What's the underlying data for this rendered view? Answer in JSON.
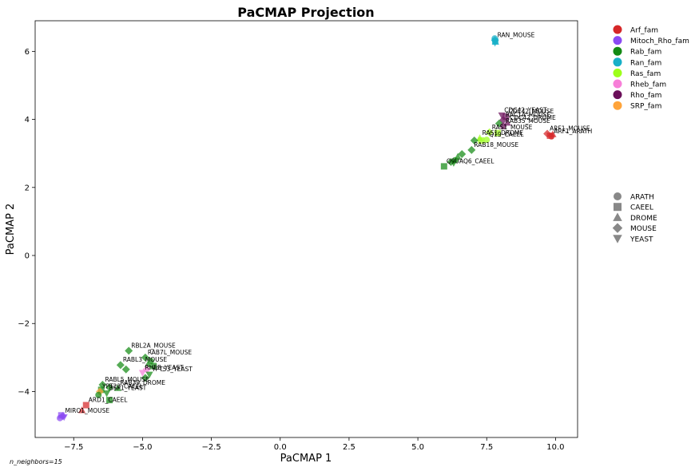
{
  "chart_data": {
    "type": "scatter",
    "title": "PaCMAP Projection",
    "xlabel": "PaCMAP 1",
    "ylabel": "PaCMAP 2",
    "xlim": [
      -8.9,
      10.8
    ],
    "ylim": [
      -5.35,
      6.9
    ],
    "xticks": [
      -7.5,
      -5.0,
      -2.5,
      0.0,
      2.5,
      5.0,
      7.5,
      10.0
    ],
    "xtick_labels": [
      "−7.5",
      "−5.0",
      "−2.5",
      "0.0",
      "2.5",
      "5.0",
      "7.5",
      "10.0"
    ],
    "yticks": [
      -4,
      -2,
      0,
      2,
      4,
      6
    ],
    "ytick_labels": [
      "−4",
      "−2",
      "0",
      "2",
      "4",
      "6"
    ],
    "grid": false,
    "footnote": "n_neighbors=15",
    "family_legend": [
      {
        "name": "Arf_fam",
        "color": "#d62728"
      },
      {
        "name": "Mitoch_Rho_fam",
        "color": "#8a4af3"
      },
      {
        "name": "Rab_fam",
        "color": "#138a13"
      },
      {
        "name": "Ran_fam",
        "color": "#17b0c8"
      },
      {
        "name": "Ras_fam",
        "color": "#9dff1a"
      },
      {
        "name": "Rheb_fam",
        "color": "#f77fd8"
      },
      {
        "name": "Rho_fam",
        "color": "#6b0f5a"
      },
      {
        "name": "SRP_fam",
        "color": "#ffa43a"
      }
    ],
    "species_legend": [
      {
        "name": "ARATH",
        "marker": "circle"
      },
      {
        "name": "CAEEL",
        "marker": "square"
      },
      {
        "name": "DROME",
        "marker": "triangle-up"
      },
      {
        "name": "MOUSE",
        "marker": "diamond"
      },
      {
        "name": "YEAST",
        "marker": "triangle-down"
      }
    ],
    "points": [
      {
        "x": 7.8,
        "y": 6.33,
        "family": "Ran_fam",
        "marker": "diamond",
        "label": "RAN_MOUSE"
      },
      {
        "x": 7.82,
        "y": 6.28,
        "family": "Ran_fam",
        "marker": "triangle-up",
        "label": ""
      },
      {
        "x": 7.79,
        "y": 6.38,
        "family": "Ran_fam",
        "marker": "circle",
        "label": ""
      },
      {
        "x": 7.81,
        "y": 6.3,
        "family": "Ran_fam",
        "marker": "square",
        "label": ""
      },
      {
        "x": 7.8,
        "y": 6.25,
        "family": "Ran_fam",
        "marker": "triangle-down",
        "label": ""
      },
      {
        "x": 8.05,
        "y": 4.12,
        "family": "Rho_fam",
        "marker": "triangle-down",
        "label": "CDC42_YEAST"
      },
      {
        "x": 8.2,
        "y": 4.08,
        "family": "Rho_fam",
        "marker": "square",
        "label": "CDC42_MOUSE"
      },
      {
        "x": 8.1,
        "y": 3.98,
        "family": "Rho_fam",
        "marker": "diamond",
        "label": "RAC1A_MOUSE"
      },
      {
        "x": 8.25,
        "y": 3.9,
        "family": "Rho_fam",
        "marker": "triangle-up",
        "label": "CDC42_DROME"
      },
      {
        "x": 7.95,
        "y": 3.88,
        "family": "Rab_fam",
        "marker": "diamond",
        "label": ""
      },
      {
        "x": 8.1,
        "y": 3.8,
        "family": "Rho_fam",
        "marker": "circle",
        "label": "RAB35_MOUSE"
      },
      {
        "x": 7.6,
        "y": 3.62,
        "family": "Ras_fam",
        "marker": "diamond",
        "label": "RAS1_MOUSE"
      },
      {
        "x": 7.9,
        "y": 3.6,
        "family": "Ras_fam",
        "marker": "square",
        "label": ""
      },
      {
        "x": 7.25,
        "y": 3.45,
        "family": "Ras_fam",
        "marker": "triangle-up",
        "label": "RAS1_DROME"
      },
      {
        "x": 7.3,
        "y": 3.38,
        "family": "Ras_fam",
        "marker": "square",
        "label": ""
      },
      {
        "x": 7.05,
        "y": 3.38,
        "family": "Rab_fam",
        "marker": "diamond",
        "label": ""
      },
      {
        "x": 7.5,
        "y": 3.4,
        "family": "Ras_fam",
        "marker": "circle",
        "label": "Q19_CAEEL"
      },
      {
        "x": 9.7,
        "y": 3.58,
        "family": "Arf_fam",
        "marker": "diamond",
        "label": "ARF1_MOUSE"
      },
      {
        "x": 9.85,
        "y": 3.5,
        "family": "Arf_fam",
        "marker": "circle",
        "label": "ARF1_ARATH"
      },
      {
        "x": 9.9,
        "y": 3.56,
        "family": "Arf_fam",
        "marker": "triangle-up",
        "label": ""
      },
      {
        "x": 9.8,
        "y": 3.52,
        "family": "Arf_fam",
        "marker": "square",
        "label": ""
      },
      {
        "x": 6.95,
        "y": 3.1,
        "family": "Rab_fam",
        "marker": "diamond",
        "label": "RAB18_MOUSE"
      },
      {
        "x": 6.6,
        "y": 2.98,
        "family": "Rab_fam",
        "marker": "diamond",
        "label": ""
      },
      {
        "x": 6.45,
        "y": 2.9,
        "family": "Rab_fam",
        "marker": "triangle-up",
        "label": ""
      },
      {
        "x": 6.35,
        "y": 2.8,
        "family": "Rab_fam",
        "marker": "circle",
        "label": ""
      },
      {
        "x": 6.2,
        "y": 2.75,
        "family": "Rab_fam",
        "marker": "diamond",
        "label": ""
      },
      {
        "x": 6.3,
        "y": 2.72,
        "family": "Rab_fam",
        "marker": "triangle-down",
        "label": ""
      },
      {
        "x": 5.95,
        "y": 2.62,
        "family": "Rab_fam",
        "marker": "square",
        "label": "Q9UAQ6_CAEEL"
      },
      {
        "x": -5.5,
        "y": -2.8,
        "family": "Rab_fam",
        "marker": "diamond",
        "label": "RBL2A_MOUSE"
      },
      {
        "x": -4.9,
        "y": -3.0,
        "family": "Rab_fam",
        "marker": "diamond",
        "label": "RAB7L_MOUSE"
      },
      {
        "x": -4.7,
        "y": -3.1,
        "family": "Rab_fam",
        "marker": "circle",
        "label": ""
      },
      {
        "x": -4.8,
        "y": -3.2,
        "family": "Rab_fam",
        "marker": "triangle-up",
        "label": ""
      },
      {
        "x": -4.6,
        "y": -3.25,
        "family": "Rab_fam",
        "marker": "square",
        "label": ""
      },
      {
        "x": -5.8,
        "y": -3.22,
        "family": "Rab_fam",
        "marker": "diamond",
        "label": "RABL3_MOUSE"
      },
      {
        "x": -5.6,
        "y": -3.35,
        "family": "Rab_fam",
        "marker": "diamond",
        "label": ""
      },
      {
        "x": -5.0,
        "y": -3.45,
        "family": "Rheb_fam",
        "marker": "triangle-down",
        "label": "RHEB_YEAST"
      },
      {
        "x": -4.85,
        "y": -3.35,
        "family": "Rheb_fam",
        "marker": "diamond",
        "label": ""
      },
      {
        "x": -4.75,
        "y": -3.5,
        "family": "Rab_fam",
        "marker": "triangle-down",
        "label": "YPT53_YEAST"
      },
      {
        "x": -4.9,
        "y": -3.6,
        "family": "Rab_fam",
        "marker": "diamond",
        "label": ""
      },
      {
        "x": -6.45,
        "y": -3.8,
        "family": "Rab_fam",
        "marker": "diamond",
        "label": "RABL5_MOUSE"
      },
      {
        "x": -6.2,
        "y": -3.88,
        "family": "Rab_fam",
        "marker": "diamond",
        "label": ""
      },
      {
        "x": -5.9,
        "y": -3.9,
        "family": "Rab_fam",
        "marker": "triangle-up",
        "label": "RAB39_DROME"
      },
      {
        "x": -6.5,
        "y": -3.95,
        "family": "Rab_fam",
        "marker": "square",
        "label": ""
      },
      {
        "x": -6.55,
        "y": -4.0,
        "family": "SRP_fam",
        "marker": "diamond",
        "label": "YPT22_CAEEL"
      },
      {
        "x": -6.6,
        "y": -4.1,
        "family": "Rab_fam",
        "marker": "circle",
        "label": ""
      },
      {
        "x": -6.3,
        "y": -4.05,
        "family": "Rab_fam",
        "marker": "triangle-down",
        "label": "BSP1_YEAST"
      },
      {
        "x": -6.2,
        "y": -4.25,
        "family": "Rab_fam",
        "marker": "square",
        "label": ""
      },
      {
        "x": -7.05,
        "y": -4.4,
        "family": "Arf_fam",
        "marker": "square",
        "label": "ARD1_CAEEL"
      },
      {
        "x": -7.2,
        "y": -4.55,
        "family": "Arf_fam",
        "marker": "triangle-up",
        "label": ""
      },
      {
        "x": -7.9,
        "y": -4.72,
        "family": "Mitoch_Rho_fam",
        "marker": "diamond",
        "label": "MIRO1_MOUSE"
      },
      {
        "x": -8.0,
        "y": -4.78,
        "family": "Mitoch_Rho_fam",
        "marker": "circle",
        "label": ""
      },
      {
        "x": -7.85,
        "y": -4.75,
        "family": "Mitoch_Rho_fam",
        "marker": "triangle-down",
        "label": ""
      },
      {
        "x": -7.95,
        "y": -4.7,
        "family": "Mitoch_Rho_fam",
        "marker": "square",
        "label": ""
      }
    ]
  }
}
